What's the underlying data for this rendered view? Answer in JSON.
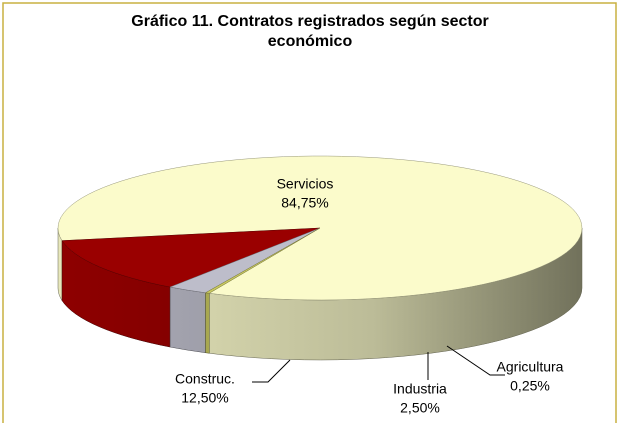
{
  "chart_data": {
    "type": "pie3d",
    "title": "Gráfico 11. Contratos registrados según sector económico",
    "categories": [
      "Servicios",
      "Construc.",
      "Industria",
      "Agricultura"
    ],
    "values": [
      84.75,
      12.5,
      2.5,
      0.25
    ],
    "value_labels": [
      "84,75%",
      "12,50%",
      "2,50%",
      "0,25%"
    ],
    "colors": [
      "#fbfbcb",
      "#9a0000",
      "#bdbdca",
      "#c8c860"
    ]
  }
}
